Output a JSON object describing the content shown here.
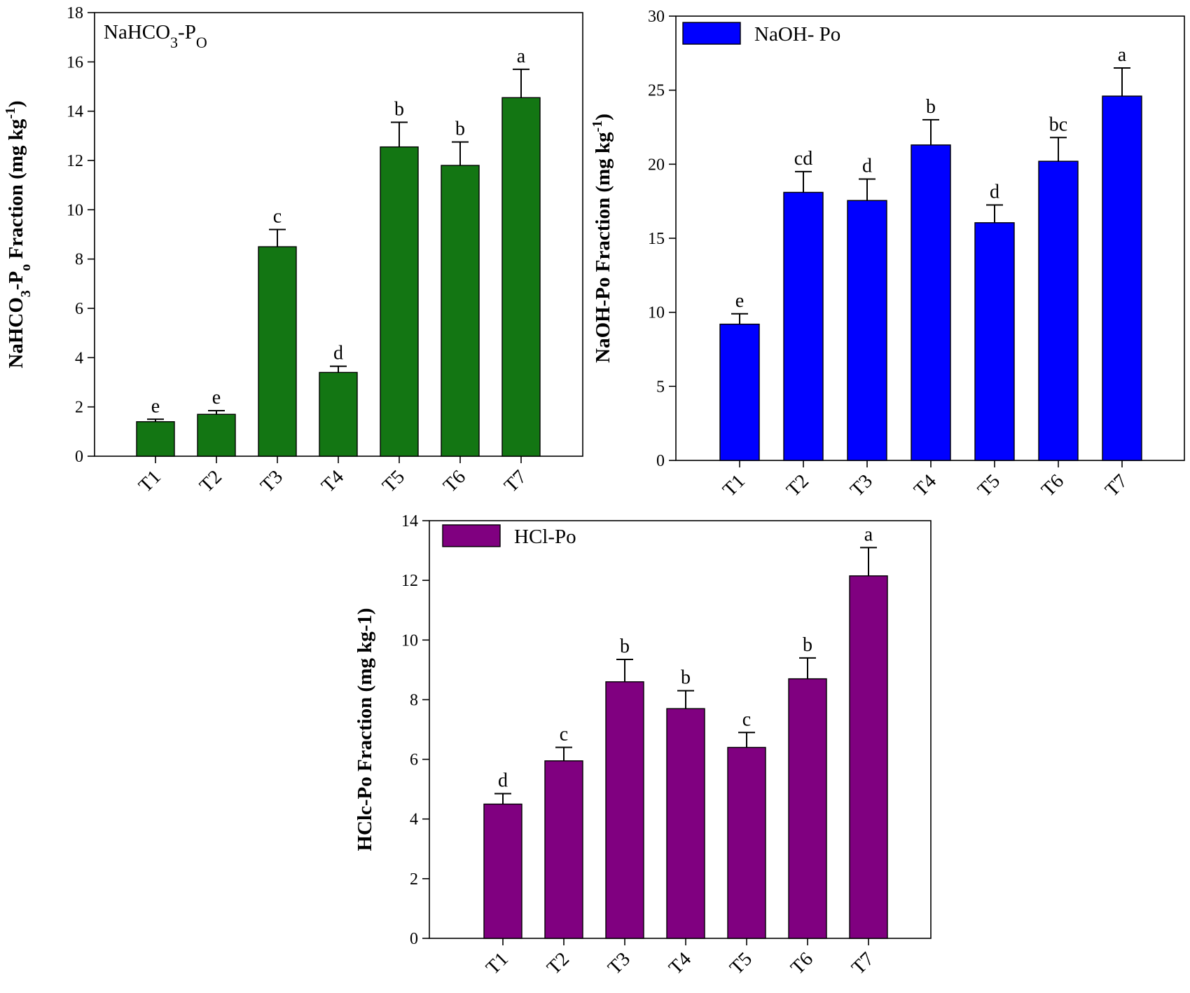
{
  "chart_data": [
    {
      "id": "nahco3",
      "type": "bar",
      "legend_style": "text",
      "legend_main": "NaHCO",
      "legend_sub1": "3",
      "legend_mid": "-P",
      "legend_sub2": "O",
      "ylabel_main": "NaHCO",
      "ylabel_sub1": "3",
      "ylabel_mid": "-P",
      "ylabel_sub2": "o",
      "ylabel_tail": "  Fraction (mg kg",
      "ylabel_sup": "-1",
      "ylabel_end": ")",
      "color": "#137613",
      "ylim": [
        0,
        18
      ],
      "yticks": [
        0,
        2,
        4,
        6,
        8,
        10,
        12,
        14,
        16,
        18
      ],
      "categories": [
        "T1",
        "T2",
        "T3",
        "T4",
        "T5",
        "T6",
        "T7"
      ],
      "values": [
        1.4,
        1.7,
        8.5,
        3.4,
        12.55,
        11.8,
        14.55
      ],
      "errors": [
        0.1,
        0.15,
        0.7,
        0.25,
        1.0,
        0.95,
        1.15
      ],
      "letters": [
        "e",
        "e",
        "c",
        "d",
        "b",
        "b",
        "a"
      ]
    },
    {
      "id": "naoh",
      "type": "bar",
      "legend_style": "box",
      "legend_label": "NaOH- Po",
      "ylabel": "NaOH-Po Fraction (mg kg",
      "ylabel_sup": "-1",
      "ylabel_end": ")",
      "color": "#0000ff",
      "ylim": [
        0,
        30
      ],
      "yticks": [
        0,
        5,
        10,
        15,
        20,
        25,
        30
      ],
      "categories": [
        "T1",
        "T2",
        "T3",
        "T4",
        "T5",
        "T6",
        "T7"
      ],
      "values": [
        9.2,
        18.1,
        17.55,
        21.3,
        16.05,
        20.2,
        24.6
      ],
      "errors": [
        0.7,
        1.4,
        1.45,
        1.7,
        1.2,
        1.6,
        1.9
      ],
      "letters": [
        "e",
        "cd",
        "d",
        "b",
        "d",
        "bc",
        "a"
      ]
    },
    {
      "id": "hcl",
      "type": "bar",
      "legend_style": "box",
      "legend_label": "HCl-Po",
      "ylabel": "HClc-Po Fraction (mg kg-1)",
      "color": "#800080",
      "ylim": [
        0,
        14
      ],
      "yticks": [
        0,
        2,
        4,
        6,
        8,
        10,
        12,
        14
      ],
      "categories": [
        "T1",
        "T2",
        "T3",
        "T4",
        "T5",
        "T6",
        "T7"
      ],
      "values": [
        4.5,
        5.95,
        8.6,
        7.7,
        6.4,
        8.7,
        12.15
      ],
      "errors": [
        0.35,
        0.45,
        0.75,
        0.6,
        0.5,
        0.7,
        0.95
      ],
      "letters": [
        "d",
        "c",
        "b",
        "b",
        "c",
        "b",
        "a"
      ]
    }
  ]
}
